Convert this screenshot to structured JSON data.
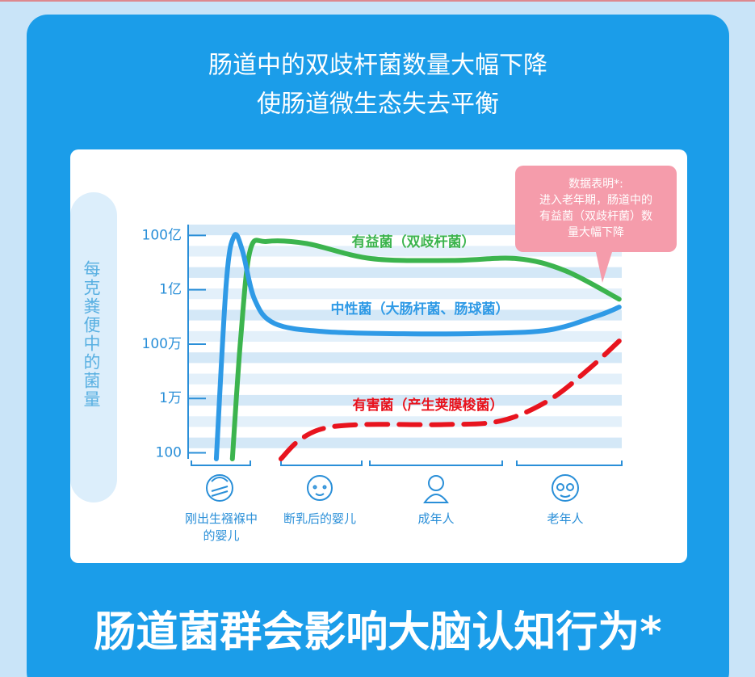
{
  "header": {
    "title_lines": [
      "肠道中的双歧杆菌数量大幅下降",
      "使肠道微生态失去平衡"
    ]
  },
  "chart_data": {
    "type": "line",
    "y_label": "每克粪便中的菌量",
    "callout": [
      "数据表明*:",
      "进入老年期，肠道中的",
      "有益菌（双歧杆菌）数",
      "量大幅下降"
    ],
    "stages": [
      "刚出生襁褓中的婴儿",
      "断乳后的婴儿",
      "成年人",
      "老年人"
    ],
    "log_scale": true,
    "ylim": [
      60,
      25000000000
    ],
    "yticks": [
      100,
      {
        "value": 10000,
        "label": "1万"
      },
      {
        "value": 1000000,
        "label": "100万"
      },
      {
        "value": 100000000,
        "label": "1亿"
      },
      {
        "value": 10000000000,
        "label": "100亿"
      }
    ],
    "xlim": [
      0,
      100
    ],
    "series": [
      {
        "name": "有益菌（双歧杆菌）",
        "color": "#3cb44e",
        "style": "solid",
        "x": [
          10.2,
          12.1,
          14.3,
          18.1,
          27.4,
          42.3,
          60.9,
          75.8,
          87.0,
          99.4
        ],
        "values": [
          60,
          1500000,
          2800000000,
          6000000000,
          5000000000,
          1400000000,
          1200000000,
          1400000000,
          500000000,
          45000000
        ]
      },
      {
        "name": "中性菌（大肠杆菌、肠球菌）",
        "color": "#2f9ae6",
        "style": "solid",
        "x": [
          6.5,
          8.8,
          10.6,
          12.5,
          15.3,
          19.9,
          31.1,
          49.7,
          68.3,
          83.2,
          94.4,
          99.4
        ],
        "values": [
          60,
          180000000,
          9500000000,
          2800000000,
          45000000,
          5800000,
          2900000,
          2400000,
          2500000,
          3300000,
          11000000,
          23000000
        ]
      },
      {
        "name": "有害菌（产生荚膜梭菌）",
        "color": "#e8141e",
        "style": "dashed",
        "x": [
          21.4,
          25.5,
          31.1,
          40.4,
          59.0,
          72.1,
          83.2,
          92.6,
          99.4
        ],
        "values": [
          60,
          280,
          780,
          1100,
          1100,
          1500,
          8600,
          130000,
          1300000
        ]
      }
    ]
  },
  "footer": {
    "headline": "肠道菌群会影响大脑认知行为*"
  }
}
